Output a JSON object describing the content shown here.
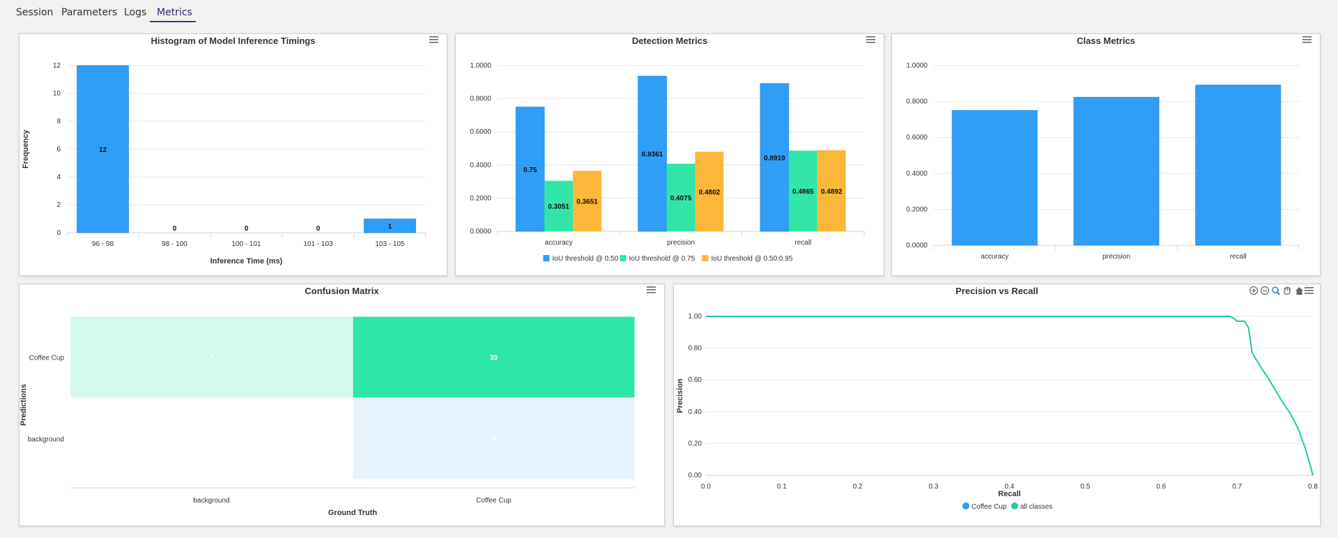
{
  "tabs": [
    {
      "label": "Session"
    },
    {
      "label": "Parameters"
    },
    {
      "label": "Logs"
    },
    {
      "label": "Metrics",
      "active": true
    }
  ],
  "colors": {
    "blue": "#2b9cf7",
    "green": "#2ee6a6",
    "orange": "#fbb636",
    "line": "#21c6a5"
  },
  "icons": {
    "menu": "hamburger-menu-icon",
    "zoom_in": "zoom-in-icon",
    "zoom_out": "zoom-out-icon",
    "zoom": "magnify-icon",
    "pan": "hand-pan-icon",
    "reset": "home-icon"
  },
  "chart_data": [
    {
      "id": "histogram",
      "type": "bar",
      "title": "Histogram of Model Inference Timings",
      "xlabel": "Inference Time (ms)",
      "ylabel": "Frequency",
      "categories": [
        "96 - 98",
        "98 - 100",
        "100 - 101",
        "101 - 103",
        "103 - 105"
      ],
      "values": [
        12,
        0,
        0,
        0,
        1
      ],
      "ylim": [
        0,
        12
      ],
      "yticks": [
        "0",
        "2",
        "4",
        "6",
        "8",
        "10",
        "12"
      ],
      "grid": true
    },
    {
      "id": "detection",
      "type": "bar",
      "title": "Detection Metrics",
      "categories": [
        "accuracy",
        "precision",
        "recall"
      ],
      "series": [
        {
          "name": "IoU threshold @ 0.50",
          "values": [
            0.75,
            0.9361,
            0.8919
          ],
          "labels": [
            "0.75",
            "0.9361",
            "0.8919"
          ]
        },
        {
          "name": "IoU threshold @ 0.75",
          "values": [
            0.3051,
            0.4075,
            0.4865
          ],
          "labels": [
            "0.3051",
            "0.4075",
            "0.4865"
          ]
        },
        {
          "name": "IoU threshold @ 0.50:0.95",
          "values": [
            0.3651,
            0.4802,
            0.4892
          ],
          "labels": [
            "0.3651",
            "0.4802",
            "0.4892"
          ]
        }
      ],
      "ylim": [
        0,
        1
      ],
      "yticks": [
        "0.0000",
        "0.2000",
        "0.4000",
        "0.6000",
        "0.8000",
        "1.0000"
      ],
      "legend": "bottom",
      "grid": true
    },
    {
      "id": "class",
      "type": "bar",
      "title": "Class Metrics",
      "categories": [
        "accuracy",
        "precision",
        "recall"
      ],
      "values": [
        0.75,
        0.8235,
        0.8919
      ],
      "ylim": [
        0,
        1
      ],
      "yticks": [
        "0.0000",
        "0.2000",
        "0.4000",
        "0.6000",
        "0.8000",
        "1.0000"
      ],
      "grid": true
    },
    {
      "id": "confusion",
      "type": "heatmap",
      "title": "Confusion Matrix",
      "xlabel": "Ground Truth",
      "ylabel": "Predictions",
      "x_categories": [
        "background",
        "Coffee Cup"
      ],
      "y_categories": [
        "Coffee Cup",
        "background"
      ],
      "cells": [
        {
          "x": 0,
          "y": 0,
          "value": "7"
        },
        {
          "x": 1,
          "y": 0,
          "value": "33"
        },
        {
          "x": 0,
          "y": 1,
          "value": ""
        },
        {
          "x": 1,
          "y": 1,
          "value": "4"
        }
      ]
    },
    {
      "id": "pr",
      "type": "line",
      "title": "Precision vs Recall",
      "xlabel": "Recall",
      "ylabel": "Precision",
      "xlim": [
        0,
        0.8
      ],
      "ylim": [
        0,
        1
      ],
      "xticks": [
        "0.0",
        "0.1",
        "0.2",
        "0.3",
        "0.4",
        "0.5",
        "0.6",
        "0.7",
        "0.8"
      ],
      "yticks": [
        "0.00",
        "0.20",
        "0.40",
        "0.60",
        "0.80",
        "1.00"
      ],
      "series": [
        {
          "name": "Coffee Cup",
          "x": [],
          "y": []
        },
        {
          "name": "all classes",
          "x": [
            0.0,
            0.69,
            0.695,
            0.7,
            0.71,
            0.715,
            0.72,
            0.73,
            0.74,
            0.75,
            0.76,
            0.77,
            0.78,
            0.79,
            0.8
          ],
          "y": [
            1.0,
            1.0,
            0.99,
            0.97,
            0.97,
            0.93,
            0.77,
            0.69,
            0.62,
            0.54,
            0.46,
            0.39,
            0.3,
            0.17,
            0.0
          ]
        }
      ],
      "legend": "bottom",
      "grid": true
    }
  ]
}
